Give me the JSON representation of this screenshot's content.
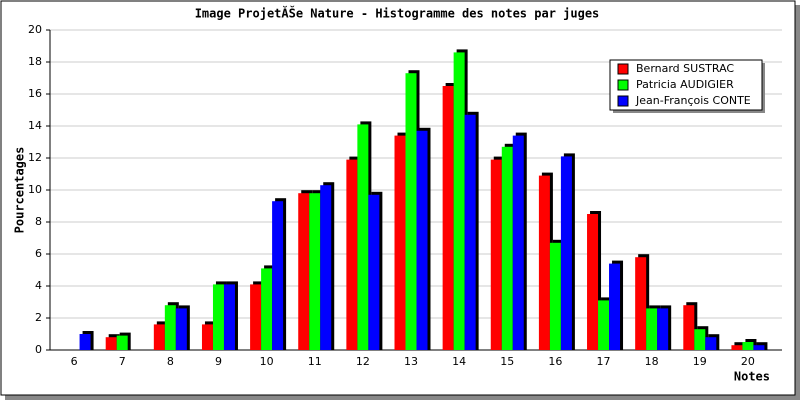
{
  "chart_data": {
    "type": "bar",
    "title": "Image ProjetĂŠe Nature - Histogramme des notes par juges",
    "x_label": "Notes",
    "y_label": "Pourcentages",
    "categories": [
      "6",
      "7",
      "8",
      "9",
      "10",
      "11",
      "12",
      "13",
      "14",
      "15",
      "16",
      "17",
      "18",
      "19",
      "20"
    ],
    "series": [
      {
        "name": "Bernard SUSTRAC",
        "color": "#ff0000",
        "values": [
          0,
          0.8,
          1.6,
          1.6,
          4.1,
          9.8,
          11.9,
          13.4,
          16.5,
          11.9,
          10.9,
          8.5,
          5.8,
          2.8,
          0.3
        ]
      },
      {
        "name": "Patricia AUDIGIER",
        "color": "#00ff00",
        "values": [
          0,
          0.9,
          2.8,
          4.1,
          5.1,
          9.8,
          14.1,
          17.3,
          18.6,
          12.7,
          6.7,
          3.1,
          2.6,
          1.3,
          0.5
        ]
      },
      {
        "name": "Jean-François CONTE",
        "color": "#0000ff",
        "values": [
          1.0,
          0,
          2.6,
          4.1,
          9.3,
          10.3,
          9.7,
          13.7,
          14.7,
          13.4,
          12.1,
          5.4,
          2.6,
          0.8,
          0.3
        ]
      }
    ],
    "ylim": [
      0,
      20
    ],
    "yticks": [
      0,
      2,
      4,
      6,
      8,
      10,
      12,
      14,
      16,
      18,
      20
    ],
    "grid": true,
    "legend": "top-right"
  }
}
